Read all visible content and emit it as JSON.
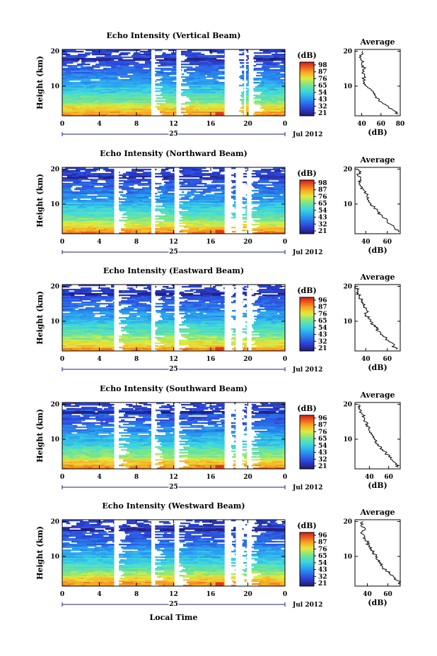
{
  "figure": {
    "xlabel": "Local Time",
    "date_label": "Jul 2012",
    "day_label": "25",
    "cbar_label": "(dB)",
    "avg_title": "Average",
    "avg_xlabel": "(dB)",
    "ylabel": "Height (km)"
  },
  "chart_data": [
    {
      "type": "heatmap",
      "title": "Echo Intensity (Vertical Beam)",
      "xlabel": "Local Time",
      "ylabel": "Height (km)",
      "x_ticks": [
        "0",
        "4",
        "8",
        "12",
        "16",
        "20",
        "0"
      ],
      "y_ticks": [
        "10",
        "20"
      ],
      "xlim": [
        0,
        24
      ],
      "ylim": [
        1.5,
        20.5
      ],
      "colorbar": {
        "label": "(dB)",
        "ticks": [
          "98",
          "87",
          "76",
          "65",
          "54",
          "43",
          "32",
          "21"
        ],
        "range": [
          21,
          98
        ]
      },
      "gaps_hours": [
        [
          9.6,
          10.0
        ],
        [
          12.3,
          12.8
        ],
        [
          17.5,
          19.0
        ],
        [
          19.6,
          19.8
        ],
        [
          20.1,
          20.6
        ]
      ],
      "surface_peak_db": 98,
      "average_profile": {
        "title": "Average",
        "xlabel": "(dB)",
        "x_ticks": [
          "40",
          "60",
          "80"
        ],
        "xlim": [
          33,
          80
        ],
        "y_ticks": [
          "10",
          "20"
        ],
        "height_km": [
          2,
          3,
          4,
          5,
          6,
          7,
          8,
          9,
          10,
          11,
          12,
          13,
          14,
          15,
          16,
          17,
          18,
          19,
          20
        ],
        "db": [
          78,
          73,
          68,
          62,
          58,
          55,
          52,
          50,
          45,
          43,
          42,
          43,
          41,
          43,
          40,
          42,
          39,
          40,
          41
        ]
      }
    },
    {
      "type": "heatmap",
      "title": "Echo Intensity (Northward Beam)",
      "xlabel": "Local Time",
      "ylabel": "Height (km)",
      "x_ticks": [
        "0",
        "4",
        "8",
        "12",
        "16",
        "20",
        "0"
      ],
      "y_ticks": [
        "10",
        "20"
      ],
      "xlim": [
        0,
        24
      ],
      "ylim": [
        1.5,
        20.5
      ],
      "colorbar": {
        "label": "(dB)",
        "ticks": [
          "98",
          "87",
          "76",
          "65",
          "54",
          "43",
          "32",
          "21"
        ],
        "range": [
          21,
          98
        ]
      },
      "gaps_hours": [
        [
          5.6,
          6.1
        ],
        [
          9.6,
          10.0
        ],
        [
          12.1,
          12.6
        ],
        [
          17.5,
          18.2
        ],
        [
          18.7,
          19.4
        ],
        [
          19.9,
          20.4
        ]
      ],
      "surface_peak_db": 98,
      "average_profile": {
        "title": "Average",
        "xlabel": "(dB)",
        "x_ticks": [
          "40",
          "60"
        ],
        "xlim": [
          30,
          72
        ],
        "y_ticks": [
          "10",
          "20"
        ],
        "height_km": [
          2,
          3,
          4,
          5,
          6,
          7,
          8,
          9,
          10,
          11,
          12,
          13,
          14,
          15,
          16,
          17,
          18,
          19,
          20
        ],
        "db": [
          70,
          67,
          64,
          60,
          57,
          54,
          51,
          48,
          45,
          43,
          41,
          40,
          38,
          36,
          34,
          35,
          33,
          34,
          32
        ]
      }
    },
    {
      "type": "heatmap",
      "title": "Echo Intensity (Eastward Beam)",
      "xlabel": "Local Time",
      "ylabel": "Height (km)",
      "x_ticks": [
        "0",
        "4",
        "8",
        "12",
        "16",
        "20",
        "0"
      ],
      "y_ticks": [
        "10",
        "20"
      ],
      "xlim": [
        0,
        24
      ],
      "ylim": [
        1.5,
        20.5
      ],
      "colorbar": {
        "label": "(dB)",
        "ticks": [
          "96",
          "87",
          "76",
          "65",
          "54",
          "43",
          "32",
          "21"
        ],
        "range": [
          21,
          96
        ]
      },
      "gaps_hours": [
        [
          5.6,
          6.1
        ],
        [
          9.6,
          10.0
        ],
        [
          12.1,
          12.6
        ],
        [
          17.5,
          18.2
        ],
        [
          18.7,
          19.4
        ],
        [
          19.9,
          20.4
        ]
      ],
      "surface_peak_db": 96,
      "average_profile": {
        "title": "Average",
        "xlabel": "(dB)",
        "x_ticks": [
          "40",
          "60"
        ],
        "xlim": [
          30,
          72
        ],
        "y_ticks": [
          "10",
          "20"
        ],
        "height_km": [
          2,
          3,
          4,
          5,
          6,
          7,
          8,
          9,
          10,
          11,
          12,
          13,
          14,
          15,
          16,
          17,
          18,
          19,
          20
        ],
        "db": [
          68,
          66,
          63,
          59,
          56,
          53,
          50,
          47,
          44,
          42,
          40,
          41,
          38,
          37,
          36,
          34,
          33,
          32,
          31
        ]
      }
    },
    {
      "type": "heatmap",
      "title": "Echo Intensity (Southward Beam)",
      "xlabel": "Local Time",
      "ylabel": "Height (km)",
      "x_ticks": [
        "0",
        "4",
        "8",
        "12",
        "16",
        "20",
        "0"
      ],
      "y_ticks": [
        "10",
        "20"
      ],
      "xlim": [
        0,
        24
      ],
      "ylim": [
        1.5,
        20.5
      ],
      "colorbar": {
        "label": "(dB)",
        "ticks": [
          "96",
          "87",
          "76",
          "65",
          "54",
          "43",
          "32",
          "21"
        ],
        "range": [
          21,
          96
        ]
      },
      "gaps_hours": [
        [
          5.6,
          6.1
        ],
        [
          9.6,
          10.0
        ],
        [
          12.1,
          12.6
        ],
        [
          17.5,
          18.2
        ],
        [
          18.7,
          19.4
        ],
        [
          19.9,
          20.4
        ]
      ],
      "surface_peak_db": 96,
      "average_profile": {
        "title": "Average",
        "xlabel": "(dB)",
        "x_ticks": [
          "40",
          "60"
        ],
        "xlim": [
          25,
          72
        ],
        "y_ticks": [
          "10",
          "20"
        ],
        "height_km": [
          2,
          3,
          4,
          5,
          6,
          7,
          8,
          9,
          10,
          11,
          12,
          13,
          14,
          15,
          16,
          17,
          18,
          19,
          20
        ],
        "db": [
          70,
          68,
          64,
          60,
          57,
          54,
          50,
          47,
          45,
          43,
          40,
          39,
          38,
          36,
          35,
          33,
          31,
          30,
          29
        ]
      }
    },
    {
      "type": "heatmap",
      "title": "Echo Intensity (Westward Beam)",
      "xlabel": "Local Time",
      "ylabel": "Height (km)",
      "x_ticks": [
        "0",
        "4",
        "8",
        "12",
        "16",
        "20",
        "0"
      ],
      "y_ticks": [
        "10",
        "20"
      ],
      "xlim": [
        0,
        24
      ],
      "ylim": [
        1.5,
        20.5
      ],
      "colorbar": {
        "label": "(dB)",
        "ticks": [
          "96",
          "87",
          "76",
          "65",
          "54",
          "43",
          "32",
          "21"
        ],
        "range": [
          21,
          96
        ]
      },
      "gaps_hours": [
        [
          5.6,
          6.1
        ],
        [
          9.6,
          10.0
        ],
        [
          12.1,
          12.6
        ],
        [
          17.5,
          18.2
        ],
        [
          18.7,
          19.4
        ],
        [
          19.9,
          20.4
        ]
      ],
      "surface_peak_db": 96,
      "average_profile": {
        "title": "Average",
        "xlabel": "(dB)",
        "x_ticks": [
          "40",
          "60"
        ],
        "xlim": [
          28,
          72
        ],
        "y_ticks": [
          "10",
          "20"
        ],
        "height_km": [
          2,
          3,
          4,
          5,
          6,
          7,
          8,
          9,
          10,
          11,
          12,
          13,
          14,
          15,
          16,
          17,
          18,
          19,
          20
        ],
        "db": [
          72,
          70,
          66,
          62,
          58,
          55,
          52,
          50,
          48,
          46,
          44,
          42,
          40,
          38,
          37,
          35,
          38,
          34,
          36
        ]
      }
    }
  ]
}
